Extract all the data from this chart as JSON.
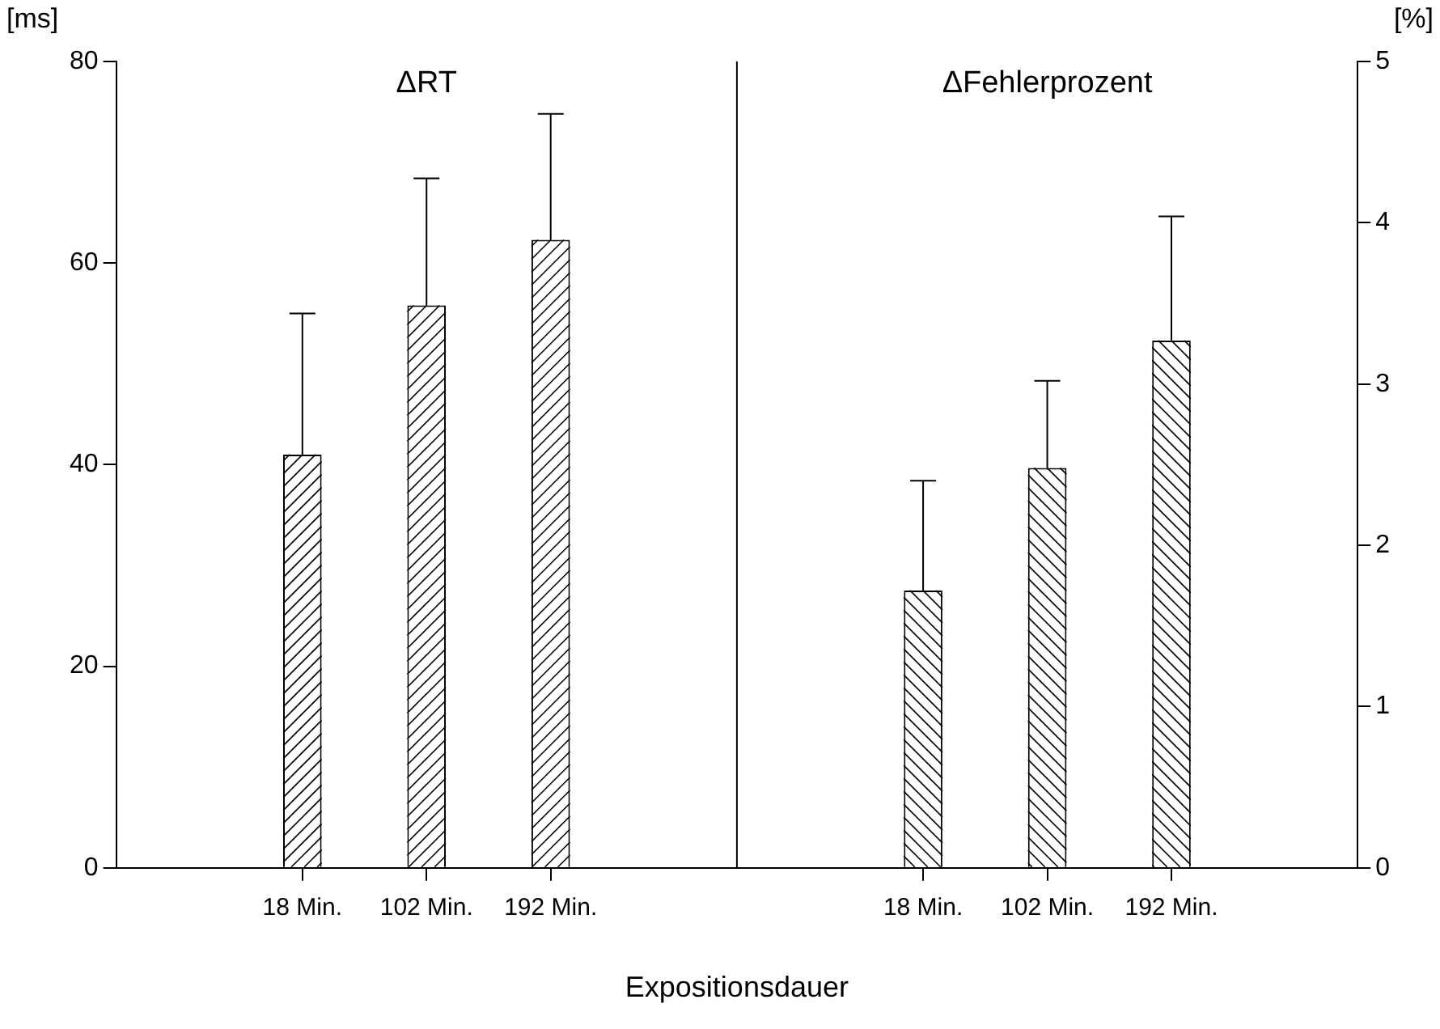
{
  "chart_data": {
    "type": "bar",
    "xlabel": "Expositionsdauer",
    "ylabel": "[ms]",
    "y2label": "[%]",
    "annotations": [
      "ΔRT",
      "ΔFehlerprozent"
    ],
    "categories": [
      null,
      "18 Min.",
      "102 Min.",
      "192 Min.",
      null,
      null,
      "18 Min.",
      "102 Min.",
      "192 Min.",
      null
    ],
    "series": [
      {
        "color": "#ffffff",
        "values": [
          null,
          41,
          55.8,
          62.3,
          null,
          null,
          null,
          null,
          null,
          null
        ],
        "errors": [
          null,
          [
            41,
            55
          ],
          [
            55.8,
            68.4
          ],
          [
            62.3,
            74.8
          ],
          null,
          null,
          null,
          null,
          null,
          null
        ]
      },
      {
        "color": "#ffffff",
        "axis": "y2",
        "values": [
          null,
          null,
          null,
          null,
          null,
          null,
          1.72,
          2.48,
          3.27,
          null
        ],
        "errors": [
          null,
          null,
          null,
          null,
          null,
          null,
          [
            1.72,
            2.4
          ],
          [
            2.48,
            3.02
          ],
          [
            3.27,
            4.04
          ],
          null
        ]
      }
    ],
    "ylim": [
      0,
      80
    ],
    "yticks": [
      0,
      20,
      40,
      60,
      80
    ],
    "y2lim": [
      0,
      5
    ],
    "y2ticks": [
      0,
      1,
      2,
      3,
      4,
      5
    ],
    "grid": false,
    "legend": false
  }
}
